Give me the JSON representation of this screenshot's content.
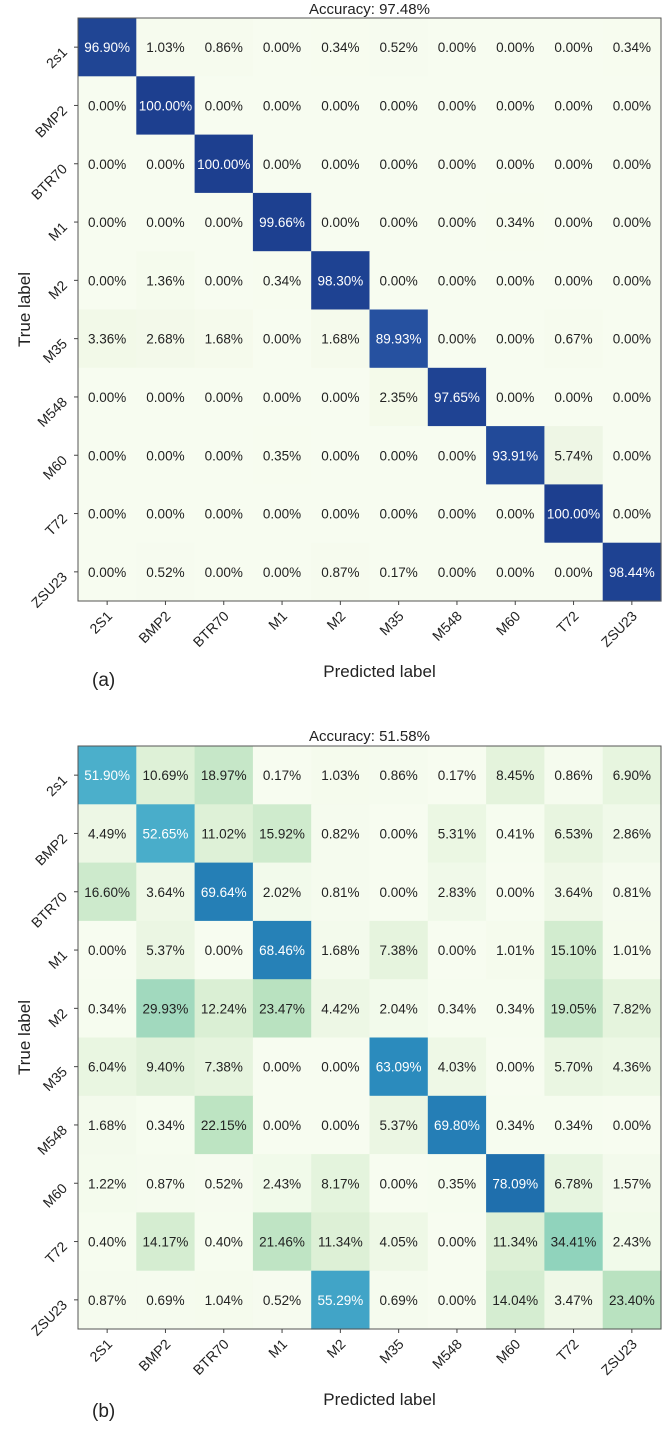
{
  "chart_data": [
    {
      "type": "heatmap",
      "title": "Accuracy: 97.48%",
      "panel_label": "(a)",
      "xlabel": "Predicted label",
      "ylabel": "True label",
      "x_categories": [
        "2S1",
        "BMP2",
        "BTR70",
        "M1",
        "M2",
        "M35",
        "M548",
        "M60",
        "T72",
        "ZSU23"
      ],
      "y_categories": [
        "2s1",
        "BMP2",
        "BTR70",
        "M1",
        "M2",
        "M35",
        "M548",
        "M60",
        "T72",
        "ZSU23"
      ],
      "colormap": "blues",
      "color_low": "#f7fcf0",
      "color_high": "#1d3f8f",
      "values": [
        [
          96.9,
          1.03,
          0.86,
          0.0,
          0.34,
          0.52,
          0.0,
          0.0,
          0.0,
          0.34
        ],
        [
          0.0,
          100.0,
          0.0,
          0.0,
          0.0,
          0.0,
          0.0,
          0.0,
          0.0,
          0.0
        ],
        [
          0.0,
          0.0,
          100.0,
          0.0,
          0.0,
          0.0,
          0.0,
          0.0,
          0.0,
          0.0
        ],
        [
          0.0,
          0.0,
          0.0,
          99.66,
          0.0,
          0.0,
          0.0,
          0.34,
          0.0,
          0.0
        ],
        [
          0.0,
          1.36,
          0.0,
          0.34,
          98.3,
          0.0,
          0.0,
          0.0,
          0.0,
          0.0
        ],
        [
          3.36,
          2.68,
          1.68,
          0.0,
          1.68,
          89.93,
          0.0,
          0.0,
          0.67,
          0.0
        ],
        [
          0.0,
          0.0,
          0.0,
          0.0,
          0.0,
          2.35,
          97.65,
          0.0,
          0.0,
          0.0
        ],
        [
          0.0,
          0.0,
          0.0,
          0.35,
          0.0,
          0.0,
          0.0,
          93.91,
          5.74,
          0.0
        ],
        [
          0.0,
          0.0,
          0.0,
          0.0,
          0.0,
          0.0,
          0.0,
          0.0,
          100.0,
          0.0
        ],
        [
          0.0,
          0.52,
          0.0,
          0.0,
          0.87,
          0.17,
          0.0,
          0.0,
          0.0,
          98.44
        ]
      ]
    },
    {
      "type": "heatmap",
      "title": "Accuracy: 51.58%",
      "panel_label": "(b)",
      "xlabel": "Predicted label",
      "ylabel": "True label",
      "x_categories": [
        "2S1",
        "BMP2",
        "BTR70",
        "M1",
        "M2",
        "M35",
        "M548",
        "M60",
        "T72",
        "ZSU23"
      ],
      "y_categories": [
        "2s1",
        "BMP2",
        "BTR70",
        "M1",
        "M2",
        "M35",
        "M548",
        "M60",
        "T72",
        "ZSU23"
      ],
      "colormap": "green-blue",
      "color_low": "#f7fcf0",
      "color_high": "#1f78b4",
      "values": [
        [
          51.9,
          10.69,
          18.97,
          0.17,
          1.03,
          0.86,
          0.17,
          8.45,
          0.86,
          6.9
        ],
        [
          4.49,
          52.65,
          11.02,
          15.92,
          0.82,
          0.0,
          5.31,
          0.41,
          6.53,
          2.86
        ],
        [
          16.6,
          3.64,
          69.64,
          2.02,
          0.81,
          0.0,
          2.83,
          0.0,
          3.64,
          0.81
        ],
        [
          0.0,
          5.37,
          0.0,
          68.46,
          1.68,
          7.38,
          0.0,
          1.01,
          15.1,
          1.01
        ],
        [
          0.34,
          29.93,
          12.24,
          23.47,
          4.42,
          2.04,
          0.34,
          0.34,
          19.05,
          7.82
        ],
        [
          6.04,
          9.4,
          7.38,
          0.0,
          0.0,
          63.09,
          4.03,
          0.0,
          5.7,
          4.36
        ],
        [
          1.68,
          0.34,
          22.15,
          0.0,
          0.0,
          5.37,
          69.8,
          0.34,
          0.34,
          0.0
        ],
        [
          1.22,
          0.87,
          0.52,
          2.43,
          8.17,
          0.0,
          0.35,
          78.09,
          6.78,
          1.57
        ],
        [
          0.4,
          14.17,
          0.4,
          21.46,
          11.34,
          4.05,
          0.0,
          11.34,
          34.41,
          2.43
        ],
        [
          0.87,
          0.69,
          1.04,
          0.52,
          55.29,
          0.69,
          0.0,
          14.04,
          3.47,
          23.4
        ]
      ]
    }
  ]
}
